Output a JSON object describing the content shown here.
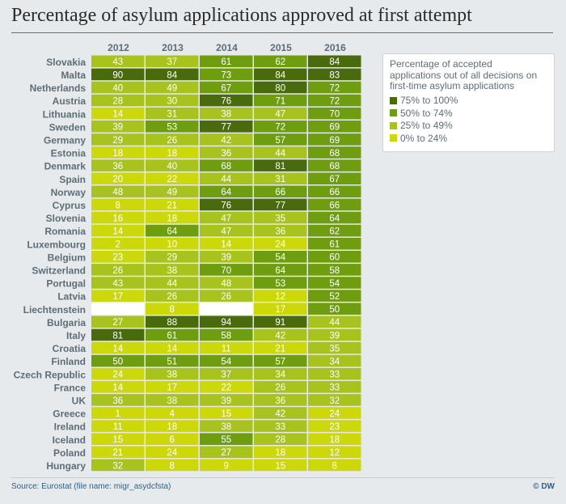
{
  "title": "Percentage of asylum applications approved at first attempt",
  "source": "Source: Eurostat (file name: migr_asydcfsta)",
  "credit": "© DW",
  "legend": {
    "title": "Percentage of accepted applications out of all decisions on first-time asylum applications",
    "items": [
      {
        "label": "75% to 100%",
        "color": "#4a6a0e"
      },
      {
        "label": "50% to 74%",
        "color": "#6e9d10"
      },
      {
        "label": "25% to 49%",
        "color": "#a8c21e"
      },
      {
        "label": "0% to 24%",
        "color": "#ccd80a"
      }
    ]
  },
  "chart_data": {
    "type": "heatmap",
    "title": "Percentage of asylum applications approved at first attempt",
    "columns": [
      "2012",
      "2013",
      "2014",
      "2015",
      "2016"
    ],
    "rows": [
      {
        "country": "Slovakia",
        "values": [
          43,
          37,
          61,
          62,
          84
        ]
      },
      {
        "country": "Malta",
        "values": [
          90,
          84,
          73,
          84,
          83
        ]
      },
      {
        "country": "Netherlands",
        "values": [
          40,
          49,
          67,
          80,
          72
        ]
      },
      {
        "country": "Austria",
        "values": [
          28,
          30,
          76,
          71,
          72
        ]
      },
      {
        "country": "Lithuania",
        "values": [
          14,
          31,
          38,
          47,
          70
        ]
      },
      {
        "country": "Sweden",
        "values": [
          39,
          53,
          77,
          72,
          69
        ]
      },
      {
        "country": "Germany",
        "values": [
          29,
          26,
          42,
          57,
          69
        ]
      },
      {
        "country": "Estonia",
        "values": [
          18,
          18,
          36,
          44,
          68
        ]
      },
      {
        "country": "Denmark",
        "values": [
          36,
          40,
          68,
          81,
          68
        ]
      },
      {
        "country": "Spain",
        "values": [
          20,
          22,
          44,
          31,
          67
        ]
      },
      {
        "country": "Norway",
        "values": [
          48,
          49,
          64,
          66,
          66
        ]
      },
      {
        "country": "Cyprus",
        "values": [
          8,
          21,
          76,
          77,
          66
        ]
      },
      {
        "country": "Slovenia",
        "values": [
          16,
          18,
          47,
          35,
          64
        ]
      },
      {
        "country": "Romania",
        "values": [
          14,
          64,
          47,
          36,
          62
        ]
      },
      {
        "country": "Luxembourg",
        "values": [
          2,
          10,
          14,
          24,
          61
        ]
      },
      {
        "country": "Belgium",
        "values": [
          23,
          29,
          39,
          54,
          60
        ]
      },
      {
        "country": "Switzerland",
        "values": [
          26,
          38,
          70,
          64,
          58
        ]
      },
      {
        "country": "Portugal",
        "values": [
          43,
          44,
          48,
          53,
          54
        ]
      },
      {
        "country": "Latvia",
        "values": [
          17,
          26,
          26,
          12,
          52
        ]
      },
      {
        "country": "Liechtenstein",
        "values": [
          null,
          8,
          null,
          17,
          50
        ]
      },
      {
        "country": "Bulgaria",
        "values": [
          27,
          88,
          94,
          91,
          44
        ]
      },
      {
        "country": "Italy",
        "values": [
          81,
          61,
          58,
          42,
          39
        ]
      },
      {
        "country": "Croatia",
        "values": [
          14,
          14,
          11,
          21,
          35
        ]
      },
      {
        "country": "Finland",
        "values": [
          50,
          51,
          54,
          57,
          34
        ]
      },
      {
        "country": "Czech Republic",
        "values": [
          24,
          38,
          37,
          34,
          33
        ]
      },
      {
        "country": "France",
        "values": [
          14,
          17,
          22,
          26,
          33
        ]
      },
      {
        "country": "UK",
        "values": [
          36,
          38,
          39,
          36,
          32
        ]
      },
      {
        "country": "Greece",
        "values": [
          1,
          4,
          15,
          42,
          24
        ]
      },
      {
        "country": "Ireland",
        "values": [
          11,
          18,
          38,
          33,
          23
        ]
      },
      {
        "country": "Iceland",
        "values": [
          15,
          6,
          55,
          28,
          18
        ]
      },
      {
        "country": "Poland",
        "values": [
          21,
          24,
          27,
          18,
          12
        ]
      },
      {
        "country": "Hungary",
        "values": [
          32,
          8,
          9,
          15,
          8
        ]
      }
    ],
    "bins": [
      {
        "min": 75,
        "max": 100,
        "color": "#4a6a0e"
      },
      {
        "min": 50,
        "max": 74,
        "color": "#6e9d10"
      },
      {
        "min": 25,
        "max": 49,
        "color": "#a8c21e"
      },
      {
        "min": 0,
        "max": 24,
        "color": "#ccd80a"
      }
    ],
    "empty_color": "#ffffff",
    "legend_position": "top-right"
  }
}
